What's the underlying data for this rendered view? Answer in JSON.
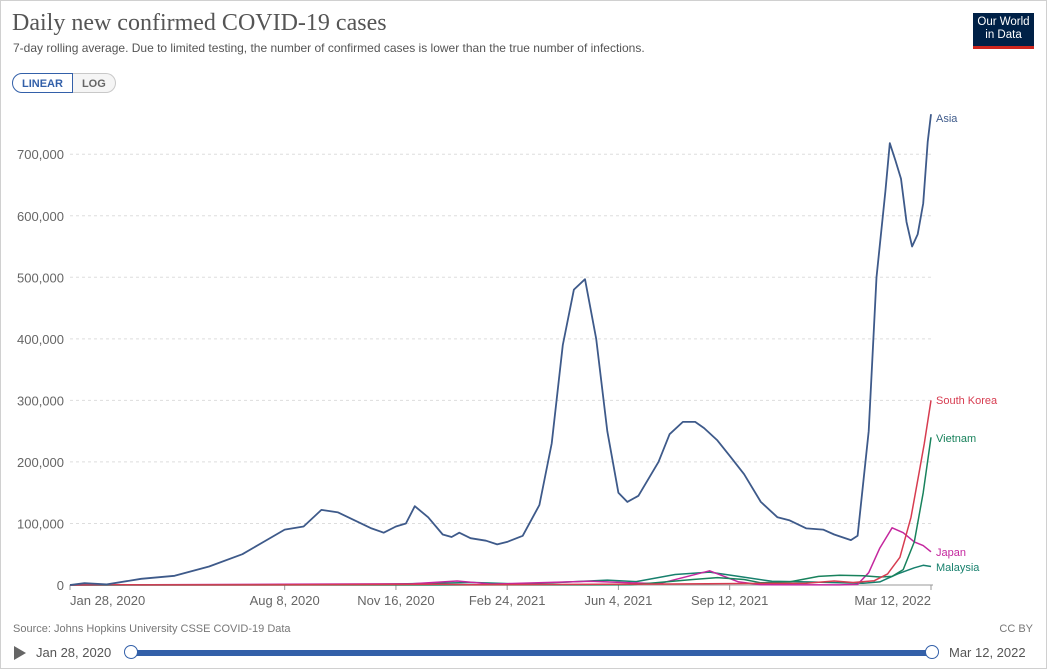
{
  "header": {
    "title": "Daily new confirmed COVID-19 cases",
    "subtitle": "7-day rolling average. Due to limited testing, the number of confirmed cases is lower than the true number of infections.",
    "logo_line1": "Our World",
    "logo_line2": "in Data"
  },
  "controls": {
    "linear_label": "LINEAR",
    "log_label": "LOG"
  },
  "footer": {
    "source": "Source: Johns Hopkins University CSSE COVID-19 Data",
    "license": "CC BY"
  },
  "timeline": {
    "start_label": "Jan 28, 2020",
    "end_label": "Mar 12, 2022"
  },
  "chart_data": {
    "type": "line",
    "title": "Daily new confirmed COVID-19 cases",
    "subtitle": "7-day rolling average. Due to limited testing, the number of confirmed cases is lower than the true number of infections.",
    "x_start": "2020-01-28",
    "x_end": "2022-03-12",
    "x_ticks": [
      "Jan 28, 2020",
      "Aug 8, 2020",
      "Nov 16, 2020",
      "Feb 24, 2021",
      "Jun 4, 2021",
      "Sep 12, 2021",
      "Mar 12, 2022"
    ],
    "y_ticks": [
      "0",
      "100,000",
      "200,000",
      "300,000",
      "400,000",
      "500,000",
      "600,000",
      "700,000"
    ],
    "ylim": [
      0,
      780000
    ],
    "grid": true,
    "series": [
      {
        "name": "Asia",
        "color": "#3e5a8a",
        "points": [
          [
            "2020-01-28",
            0
          ],
          [
            "2020-02-10",
            3000
          ],
          [
            "2020-03-01",
            1000
          ],
          [
            "2020-04-01",
            10000
          ],
          [
            "2020-05-01",
            15000
          ],
          [
            "2020-06-01",
            30000
          ],
          [
            "2020-07-01",
            50000
          ],
          [
            "2020-07-20",
            70000
          ],
          [
            "2020-08-08",
            90000
          ],
          [
            "2020-08-25",
            95000
          ],
          [
            "2020-09-10",
            122000
          ],
          [
            "2020-09-25",
            118000
          ],
          [
            "2020-10-10",
            105000
          ],
          [
            "2020-10-25",
            92000
          ],
          [
            "2020-11-05",
            85000
          ],
          [
            "2020-11-16",
            95000
          ],
          [
            "2020-11-25",
            100000
          ],
          [
            "2020-12-03",
            128000
          ],
          [
            "2020-12-15",
            110000
          ],
          [
            "2020-12-28",
            82000
          ],
          [
            "2021-01-05",
            78000
          ],
          [
            "2021-01-12",
            85000
          ],
          [
            "2021-01-22",
            76000
          ],
          [
            "2021-02-05",
            72000
          ],
          [
            "2021-02-15",
            66000
          ],
          [
            "2021-02-24",
            70000
          ],
          [
            "2021-03-10",
            80000
          ],
          [
            "2021-03-25",
            130000
          ],
          [
            "2021-04-05",
            230000
          ],
          [
            "2021-04-15",
            390000
          ],
          [
            "2021-04-25",
            480000
          ],
          [
            "2021-05-05",
            497000
          ],
          [
            "2021-05-15",
            400000
          ],
          [
            "2021-05-25",
            250000
          ],
          [
            "2021-06-04",
            150000
          ],
          [
            "2021-06-12",
            135000
          ],
          [
            "2021-06-22",
            145000
          ],
          [
            "2021-07-10",
            200000
          ],
          [
            "2021-07-20",
            245000
          ],
          [
            "2021-08-01",
            265000
          ],
          [
            "2021-08-12",
            265000
          ],
          [
            "2021-08-20",
            255000
          ],
          [
            "2021-09-01",
            235000
          ],
          [
            "2021-09-12",
            210000
          ],
          [
            "2021-09-25",
            180000
          ],
          [
            "2021-10-10",
            135000
          ],
          [
            "2021-10-25",
            110000
          ],
          [
            "2021-11-05",
            105000
          ],
          [
            "2021-11-20",
            92000
          ],
          [
            "2021-12-05",
            90000
          ],
          [
            "2021-12-15",
            82000
          ],
          [
            "2021-12-30",
            73000
          ],
          [
            "2022-01-05",
            80000
          ],
          [
            "2022-01-15",
            250000
          ],
          [
            "2022-01-22",
            500000
          ],
          [
            "2022-01-30",
            640000
          ],
          [
            "2022-02-03",
            718000
          ],
          [
            "2022-02-08",
            690000
          ],
          [
            "2022-02-13",
            660000
          ],
          [
            "2022-02-18",
            590000
          ],
          [
            "2022-02-23",
            550000
          ],
          [
            "2022-02-28",
            570000
          ],
          [
            "2022-03-05",
            620000
          ],
          [
            "2022-03-09",
            720000
          ],
          [
            "2022-03-12",
            765000
          ]
        ]
      },
      {
        "name": "South Korea",
        "color": "#d73c50",
        "points": [
          [
            "2020-01-28",
            0
          ],
          [
            "2020-03-01",
            700
          ],
          [
            "2020-04-01",
            100
          ],
          [
            "2020-08-28",
            400
          ],
          [
            "2020-12-25",
            1100
          ],
          [
            "2021-01-20",
            400
          ],
          [
            "2021-07-20",
            1600
          ],
          [
            "2021-09-25",
            2500
          ],
          [
            "2021-11-20",
            3000
          ],
          [
            "2021-12-15",
            6500
          ],
          [
            "2022-01-01",
            4000
          ],
          [
            "2022-01-20",
            7000
          ],
          [
            "2022-02-01",
            18000
          ],
          [
            "2022-02-12",
            45000
          ],
          [
            "2022-02-22",
            110000
          ],
          [
            "2022-03-01",
            180000
          ],
          [
            "2022-03-06",
            230000
          ],
          [
            "2022-03-12",
            300000
          ]
        ]
      },
      {
        "name": "Vietnam",
        "color": "#18825c",
        "points": [
          [
            "2020-01-28",
            0
          ],
          [
            "2021-05-10",
            200
          ],
          [
            "2021-06-15",
            400
          ],
          [
            "2021-07-10",
            4000
          ],
          [
            "2021-08-10",
            9000
          ],
          [
            "2021-09-01",
            12000
          ],
          [
            "2021-09-25",
            9000
          ],
          [
            "2021-10-10",
            3500
          ],
          [
            "2021-11-05",
            5000
          ],
          [
            "2021-12-01",
            14000
          ],
          [
            "2021-12-20",
            16000
          ],
          [
            "2022-01-10",
            15000
          ],
          [
            "2022-01-25",
            13000
          ],
          [
            "2022-02-05",
            14000
          ],
          [
            "2022-02-15",
            25000
          ],
          [
            "2022-02-25",
            70000
          ],
          [
            "2022-03-05",
            150000
          ],
          [
            "2022-03-12",
            240000
          ]
        ]
      },
      {
        "name": "Japan",
        "color": "#c4279e",
        "points": [
          [
            "2020-01-28",
            0
          ],
          [
            "2020-04-10",
            500
          ],
          [
            "2020-08-05",
            1200
          ],
          [
            "2020-12-01",
            2000
          ],
          [
            "2021-01-10",
            6500
          ],
          [
            "2021-02-10",
            1500
          ],
          [
            "2021-05-10",
            6000
          ],
          [
            "2021-07-10",
            2000
          ],
          [
            "2021-08-25",
            23000
          ],
          [
            "2021-09-20",
            5000
          ],
          [
            "2021-10-10",
            500
          ],
          [
            "2021-12-20",
            200
          ],
          [
            "2022-01-05",
            1000
          ],
          [
            "2022-01-15",
            20000
          ],
          [
            "2022-01-25",
            60000
          ],
          [
            "2022-02-05",
            93000
          ],
          [
            "2022-02-15",
            85000
          ],
          [
            "2022-02-25",
            70000
          ],
          [
            "2022-03-05",
            64000
          ],
          [
            "2022-03-12",
            54000
          ]
        ]
      },
      {
        "name": "Malaysia",
        "color": "#17806d",
        "points": [
          [
            "2020-01-28",
            0
          ],
          [
            "2020-10-20",
            700
          ],
          [
            "2021-01-25",
            4000
          ],
          [
            "2021-03-10",
            1500
          ],
          [
            "2021-05-25",
            8000
          ],
          [
            "2021-06-20",
            5500
          ],
          [
            "2021-07-25",
            17000
          ],
          [
            "2021-08-25",
            21000
          ],
          [
            "2021-09-20",
            14000
          ],
          [
            "2021-10-20",
            6000
          ],
          [
            "2021-11-20",
            5000
          ],
          [
            "2021-12-20",
            3500
          ],
          [
            "2022-01-10",
            3000
          ],
          [
            "2022-01-25",
            5000
          ],
          [
            "2022-02-10",
            18000
          ],
          [
            "2022-02-25",
            28000
          ],
          [
            "2022-03-05",
            32000
          ],
          [
            "2022-03-12",
            30000
          ]
        ]
      }
    ]
  }
}
